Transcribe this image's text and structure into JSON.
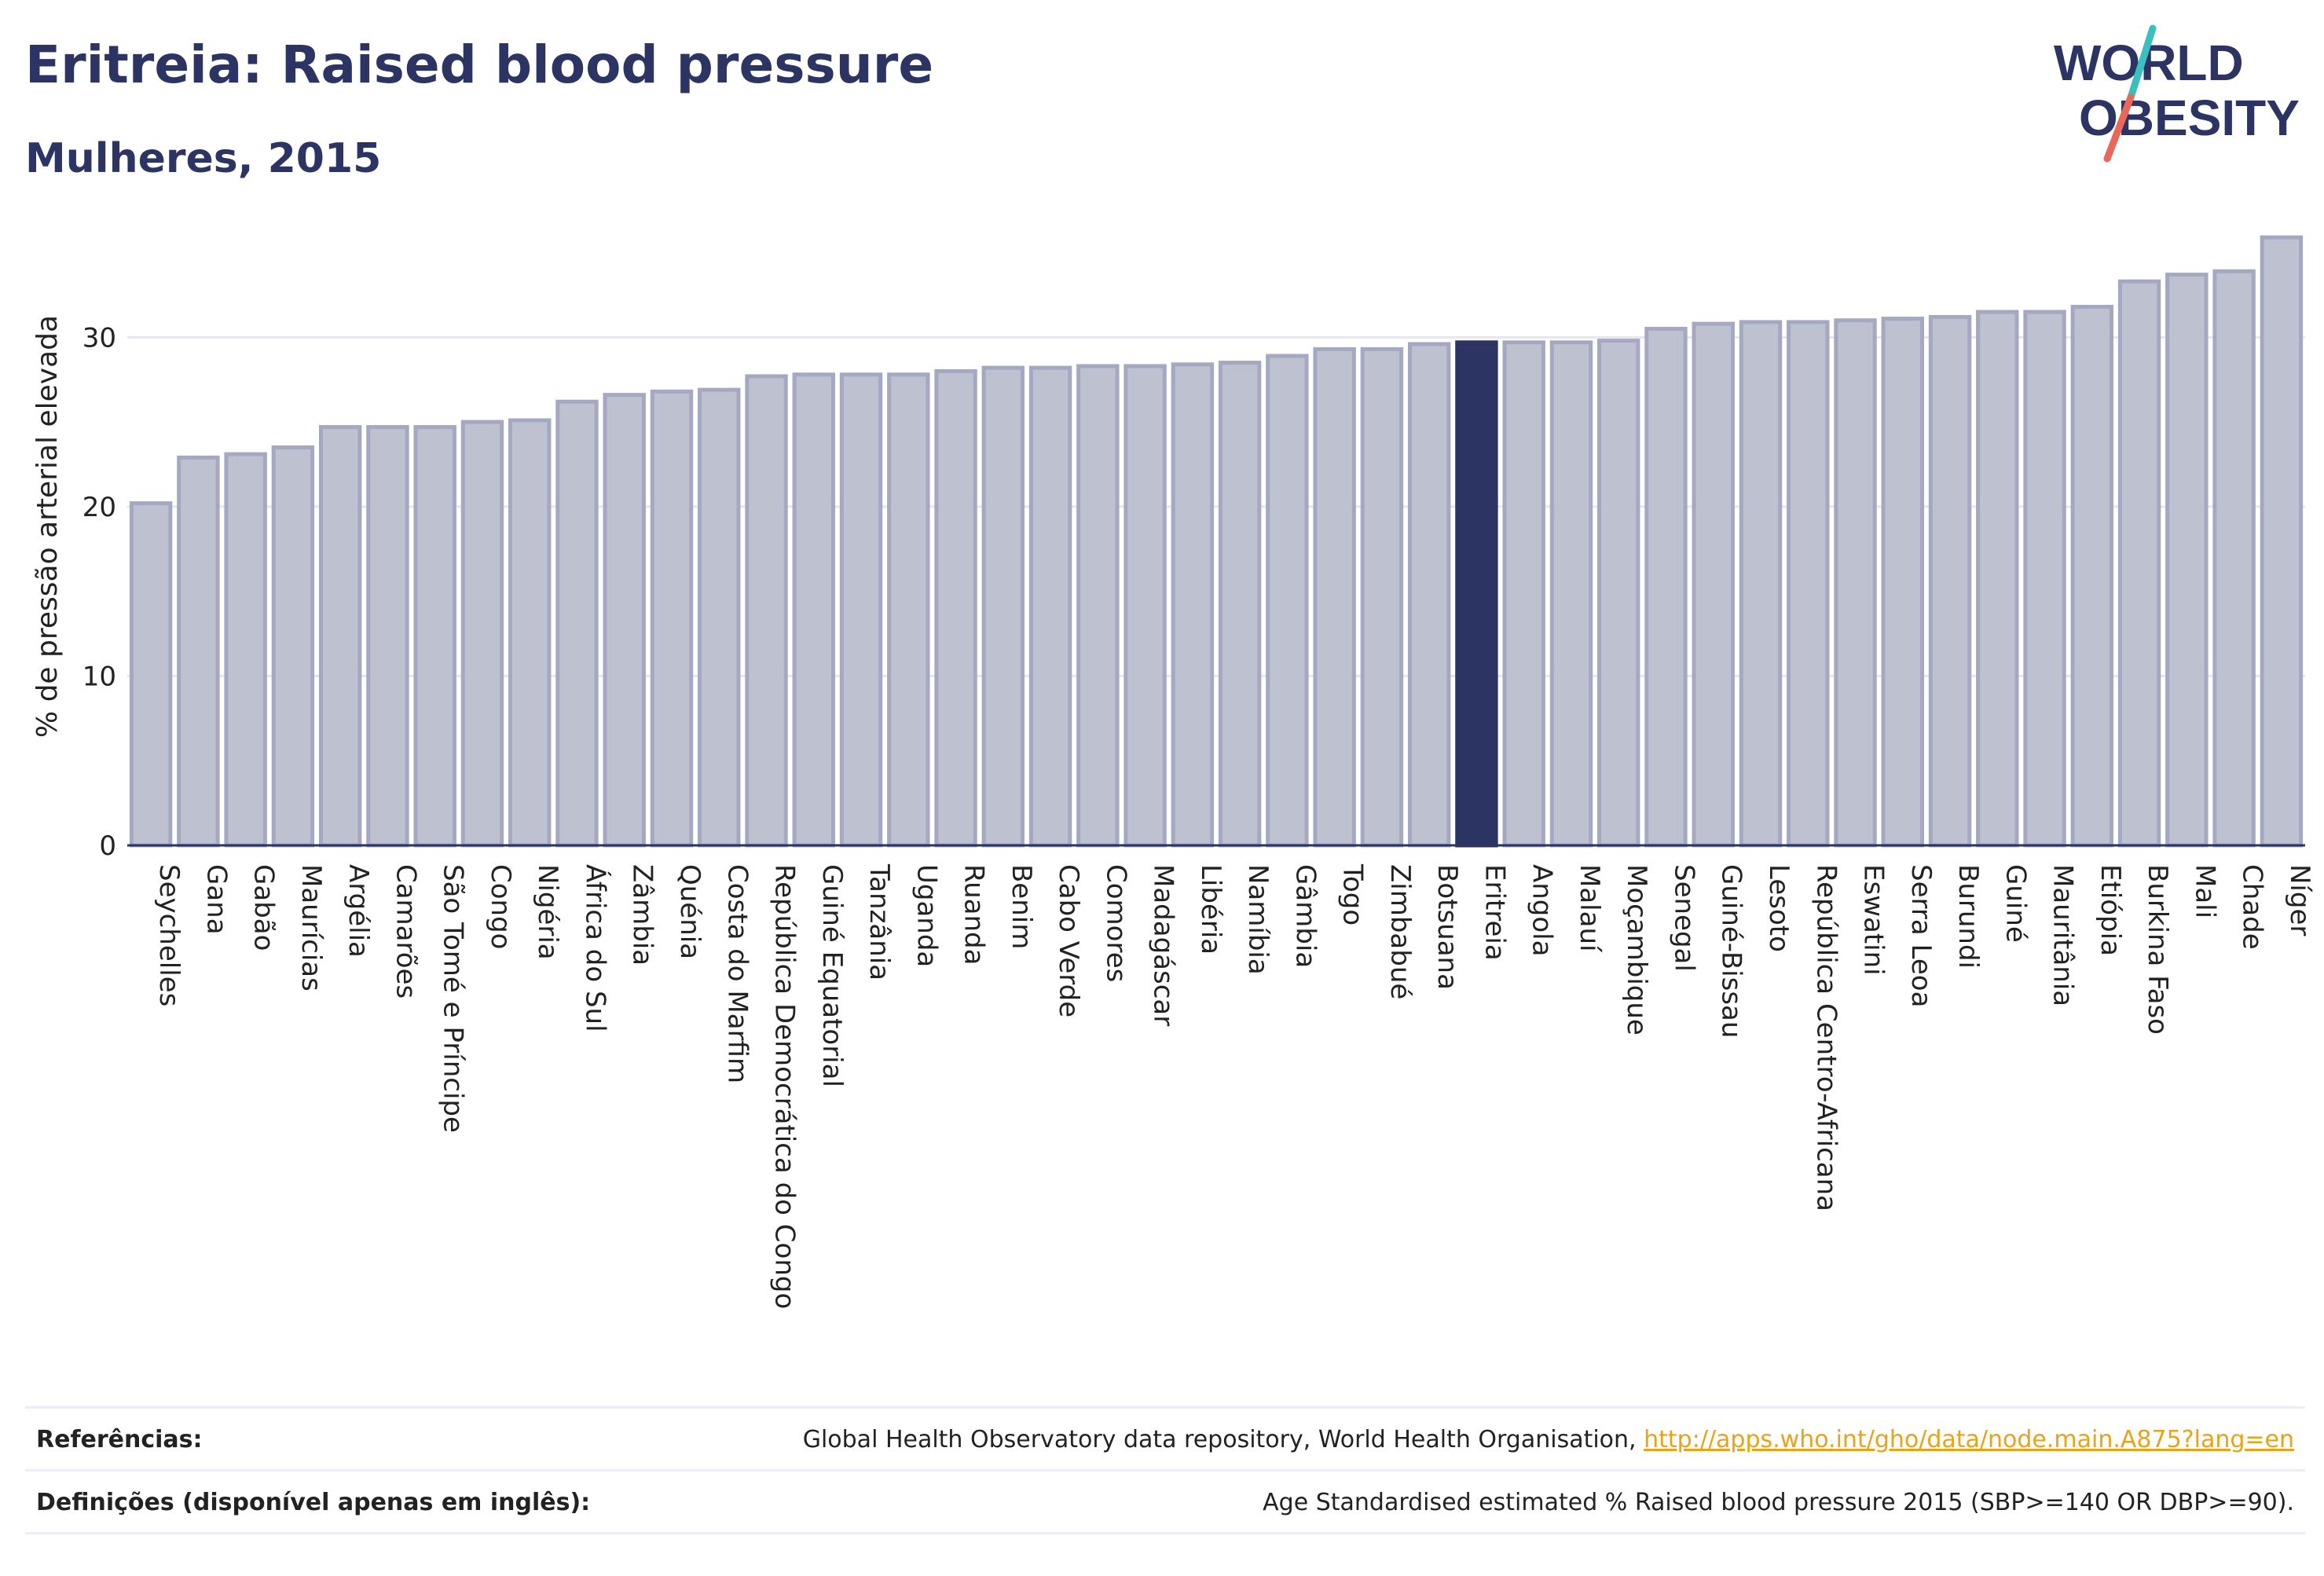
{
  "header": {
    "title": "Eritreia: Raised blood pressure",
    "subtitle": "Mulheres, 2015"
  },
  "logo": {
    "line1": "WORLD",
    "line2": "OBESITY",
    "colors": {
      "text": "#2b3462",
      "slash_top": "#3bbfbf",
      "slash_bottom": "#e8685a"
    }
  },
  "colors": {
    "bar_default": "#bec1d0",
    "bar_default_stroke": "#a4a8c0",
    "bar_highlight": "#2b3462",
    "grid": "#e6e7ee",
    "axis": "#2b3462"
  },
  "chart_data": {
    "type": "bar",
    "ylabel": "% de pressão arterial elevada",
    "xlabel": "",
    "ylim": [
      0,
      36
    ],
    "yticks": [
      0,
      10,
      20,
      30
    ],
    "grid": true,
    "highlight": "Eritreia",
    "categories": [
      "Seychelles",
      "Gana",
      "Gabão",
      "Maurícias",
      "Argélia",
      "Camarões",
      "São Tomé e Príncipe",
      "Congo",
      "Nigéria",
      "África do Sul",
      "Zâmbia",
      "Quénia",
      "Costa do Marfim",
      "República Democrática do Congo",
      "Guiné Equatorial",
      "Tanzânia",
      "Uganda",
      "Ruanda",
      "Benim",
      "Cabo Verde",
      "Comores",
      "Madagáscar",
      "Libéria",
      "Namíbia",
      "Gâmbia",
      "Togo",
      "Zimbabué",
      "Botsuana",
      "Eritreia",
      "Angola",
      "Malauí",
      "Moçambique",
      "Senegal",
      "Guiné-Bissau",
      "Lesoto",
      "República Centro-Africana",
      "Eswatini",
      "Serra Leoa",
      "Burundi",
      "Guiné",
      "Mauritânia",
      "Etiópia",
      "Burkina Faso",
      "Mali",
      "Chade",
      "Níger"
    ],
    "values": [
      20.2,
      22.9,
      23.1,
      23.5,
      24.7,
      24.7,
      24.7,
      25.0,
      25.1,
      26.2,
      26.6,
      26.8,
      26.9,
      27.7,
      27.8,
      27.8,
      27.8,
      28.0,
      28.2,
      28.2,
      28.3,
      28.3,
      28.4,
      28.5,
      28.9,
      29.3,
      29.3,
      29.6,
      29.7,
      29.7,
      29.7,
      29.8,
      30.5,
      30.8,
      30.9,
      30.9,
      31.0,
      31.1,
      31.2,
      31.5,
      31.5,
      31.8,
      33.3,
      33.7,
      33.9,
      35.9
    ]
  },
  "footer": {
    "references_label": "Referências:",
    "references_text": "Global Health Observatory data repository, World Health Organisation,",
    "references_link": "http://apps.who.int/gho/data/node.main.A875?lang=en",
    "definitions_label": "Definições (disponível apenas em inglês):",
    "definitions_text": "Age Standardised estimated % Raised blood pressure 2015 (SBP>=140 OR DBP>=90)."
  }
}
